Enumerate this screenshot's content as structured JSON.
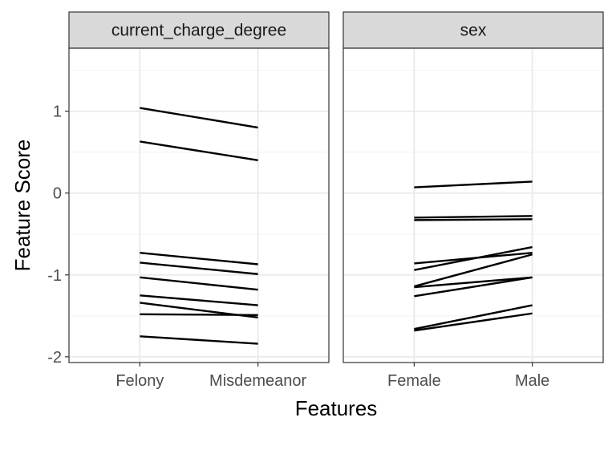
{
  "chart_data": {
    "type": "line",
    "xlabel": "Features",
    "ylabel": "Feature Score",
    "ylim": [
      -2.07,
      1.77
    ],
    "y_ticks": [
      1,
      0,
      -1,
      -2
    ],
    "y_tick_labels": [
      "1",
      "0",
      "-1",
      "-2"
    ],
    "grid": true,
    "panels": [
      {
        "strip_label": "current_charge_degree",
        "categories": [
          "Felony",
          "Misdemeanor"
        ],
        "series": [
          {
            "values": [
              1.04,
              0.8
            ]
          },
          {
            "values": [
              0.63,
              0.4
            ]
          },
          {
            "values": [
              -0.73,
              -0.87
            ]
          },
          {
            "values": [
              -0.85,
              -0.99
            ]
          },
          {
            "values": [
              -1.03,
              -1.18
            ]
          },
          {
            "values": [
              -1.25,
              -1.37
            ]
          },
          {
            "values": [
              -1.34,
              -1.52
            ]
          },
          {
            "values": [
              -1.48,
              -1.49
            ]
          },
          {
            "values": [
              -1.75,
              -1.84
            ]
          }
        ]
      },
      {
        "strip_label": "sex",
        "categories": [
          "Female",
          "Male"
        ],
        "series": [
          {
            "values": [
              0.07,
              0.14
            ]
          },
          {
            "values": [
              -0.3,
              -0.28
            ]
          },
          {
            "values": [
              -0.33,
              -0.32
            ]
          },
          {
            "values": [
              -0.86,
              -0.73
            ]
          },
          {
            "values": [
              -0.94,
              -0.66
            ]
          },
          {
            "values": [
              -1.14,
              -0.75
            ]
          },
          {
            "values": [
              -1.15,
              -1.03
            ]
          },
          {
            "values": [
              -1.26,
              -1.03
            ]
          },
          {
            "values": [
              -1.66,
              -1.37
            ]
          },
          {
            "values": [
              -1.68,
              -1.47
            ]
          }
        ]
      }
    ]
  },
  "colors": {
    "line": "#000000",
    "strip_fill": "#d9d9d9",
    "grid_major": "#ebebeb",
    "grid_minor": "#f4f4f4",
    "axis_text": "#4d4d4d"
  }
}
